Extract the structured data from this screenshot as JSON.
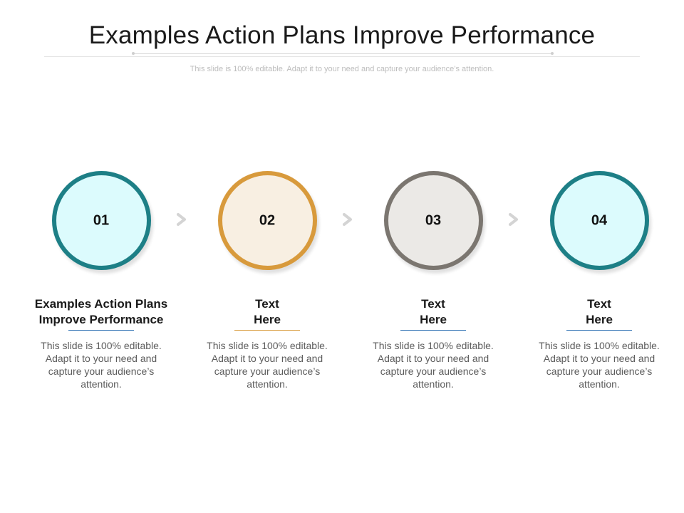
{
  "slide": {
    "title": "Examples Action Plans Improve Performance",
    "subtitle": "This slide is 100% editable. Adapt it to your need and capture your audience’s attention."
  },
  "steps": [
    {
      "number": "01",
      "heading": "Examples Action Plans Improve Performance",
      "description": "This slide is 100% editable. Adapt it to your need and capture your audience’s attention.",
      "ring_color": "#1d7f86",
      "fill_color": "#dcfbfd",
      "line_color": "#2d6fb3"
    },
    {
      "number": "02",
      "heading": "Text Here",
      "description": "This slide is 100% editable. Adapt it to your need and capture your audience’s attention.",
      "ring_color": "#d89a3c",
      "fill_color": "#f8efe2",
      "line_color": "#d89a3c"
    },
    {
      "number": "03",
      "heading": "Text Here",
      "description": "This slide is 100% editable. Adapt it to your need and capture your audience’s attention.",
      "ring_color": "#7b7670",
      "fill_color": "#ebe9e6",
      "line_color": "#2d6fb3"
    },
    {
      "number": "04",
      "heading": "Text Here",
      "description": "This slide is 100% editable. Adapt it to your need and capture your audience’s attention.",
      "ring_color": "#1d7f86",
      "fill_color": "#dcfbfd",
      "line_color": "#2d6fb3"
    }
  ],
  "connector": {
    "icon": "chevron-right-icon",
    "color": "#d4d4d4"
  }
}
